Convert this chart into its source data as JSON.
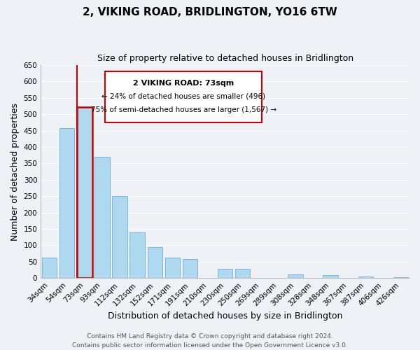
{
  "title": "2, VIKING ROAD, BRIDLINGTON, YO16 6TW",
  "subtitle": "Size of property relative to detached houses in Bridlington",
  "xlabel": "Distribution of detached houses by size in Bridlington",
  "ylabel": "Number of detached properties",
  "footer_line1": "Contains HM Land Registry data © Crown copyright and database right 2024.",
  "footer_line2": "Contains public sector information licensed under the Open Government Licence v3.0.",
  "categories": [
    "34sqm",
    "54sqm",
    "73sqm",
    "93sqm",
    "112sqm",
    "132sqm",
    "152sqm",
    "171sqm",
    "191sqm",
    "210sqm",
    "230sqm",
    "250sqm",
    "269sqm",
    "289sqm",
    "308sqm",
    "328sqm",
    "348sqm",
    "367sqm",
    "387sqm",
    "406sqm",
    "426sqm"
  ],
  "values": [
    63,
    458,
    521,
    370,
    250,
    140,
    95,
    62,
    58,
    0,
    28,
    28,
    0,
    0,
    12,
    0,
    10,
    0,
    5,
    0,
    3
  ],
  "bar_color": "#add8f0",
  "bar_edge_color": "#6ab0d8",
  "highlight_bar_index": 2,
  "highlight_color": "#cc0000",
  "ylim": [
    0,
    650
  ],
  "yticks": [
    0,
    50,
    100,
    150,
    200,
    250,
    300,
    350,
    400,
    450,
    500,
    550,
    600,
    650
  ],
  "annotation_title": "2 VIKING ROAD: 73sqm",
  "annotation_line1": "← 24% of detached houses are smaller (496)",
  "annotation_line2": "75% of semi-detached houses are larger (1,567) →",
  "bg_color": "#eef2f7",
  "grid_color": "#ffffff",
  "title_fontsize": 11,
  "subtitle_fontsize": 9,
  "axis_label_fontsize": 9,
  "tick_fontsize": 7.5,
  "footer_fontsize": 6.5
}
